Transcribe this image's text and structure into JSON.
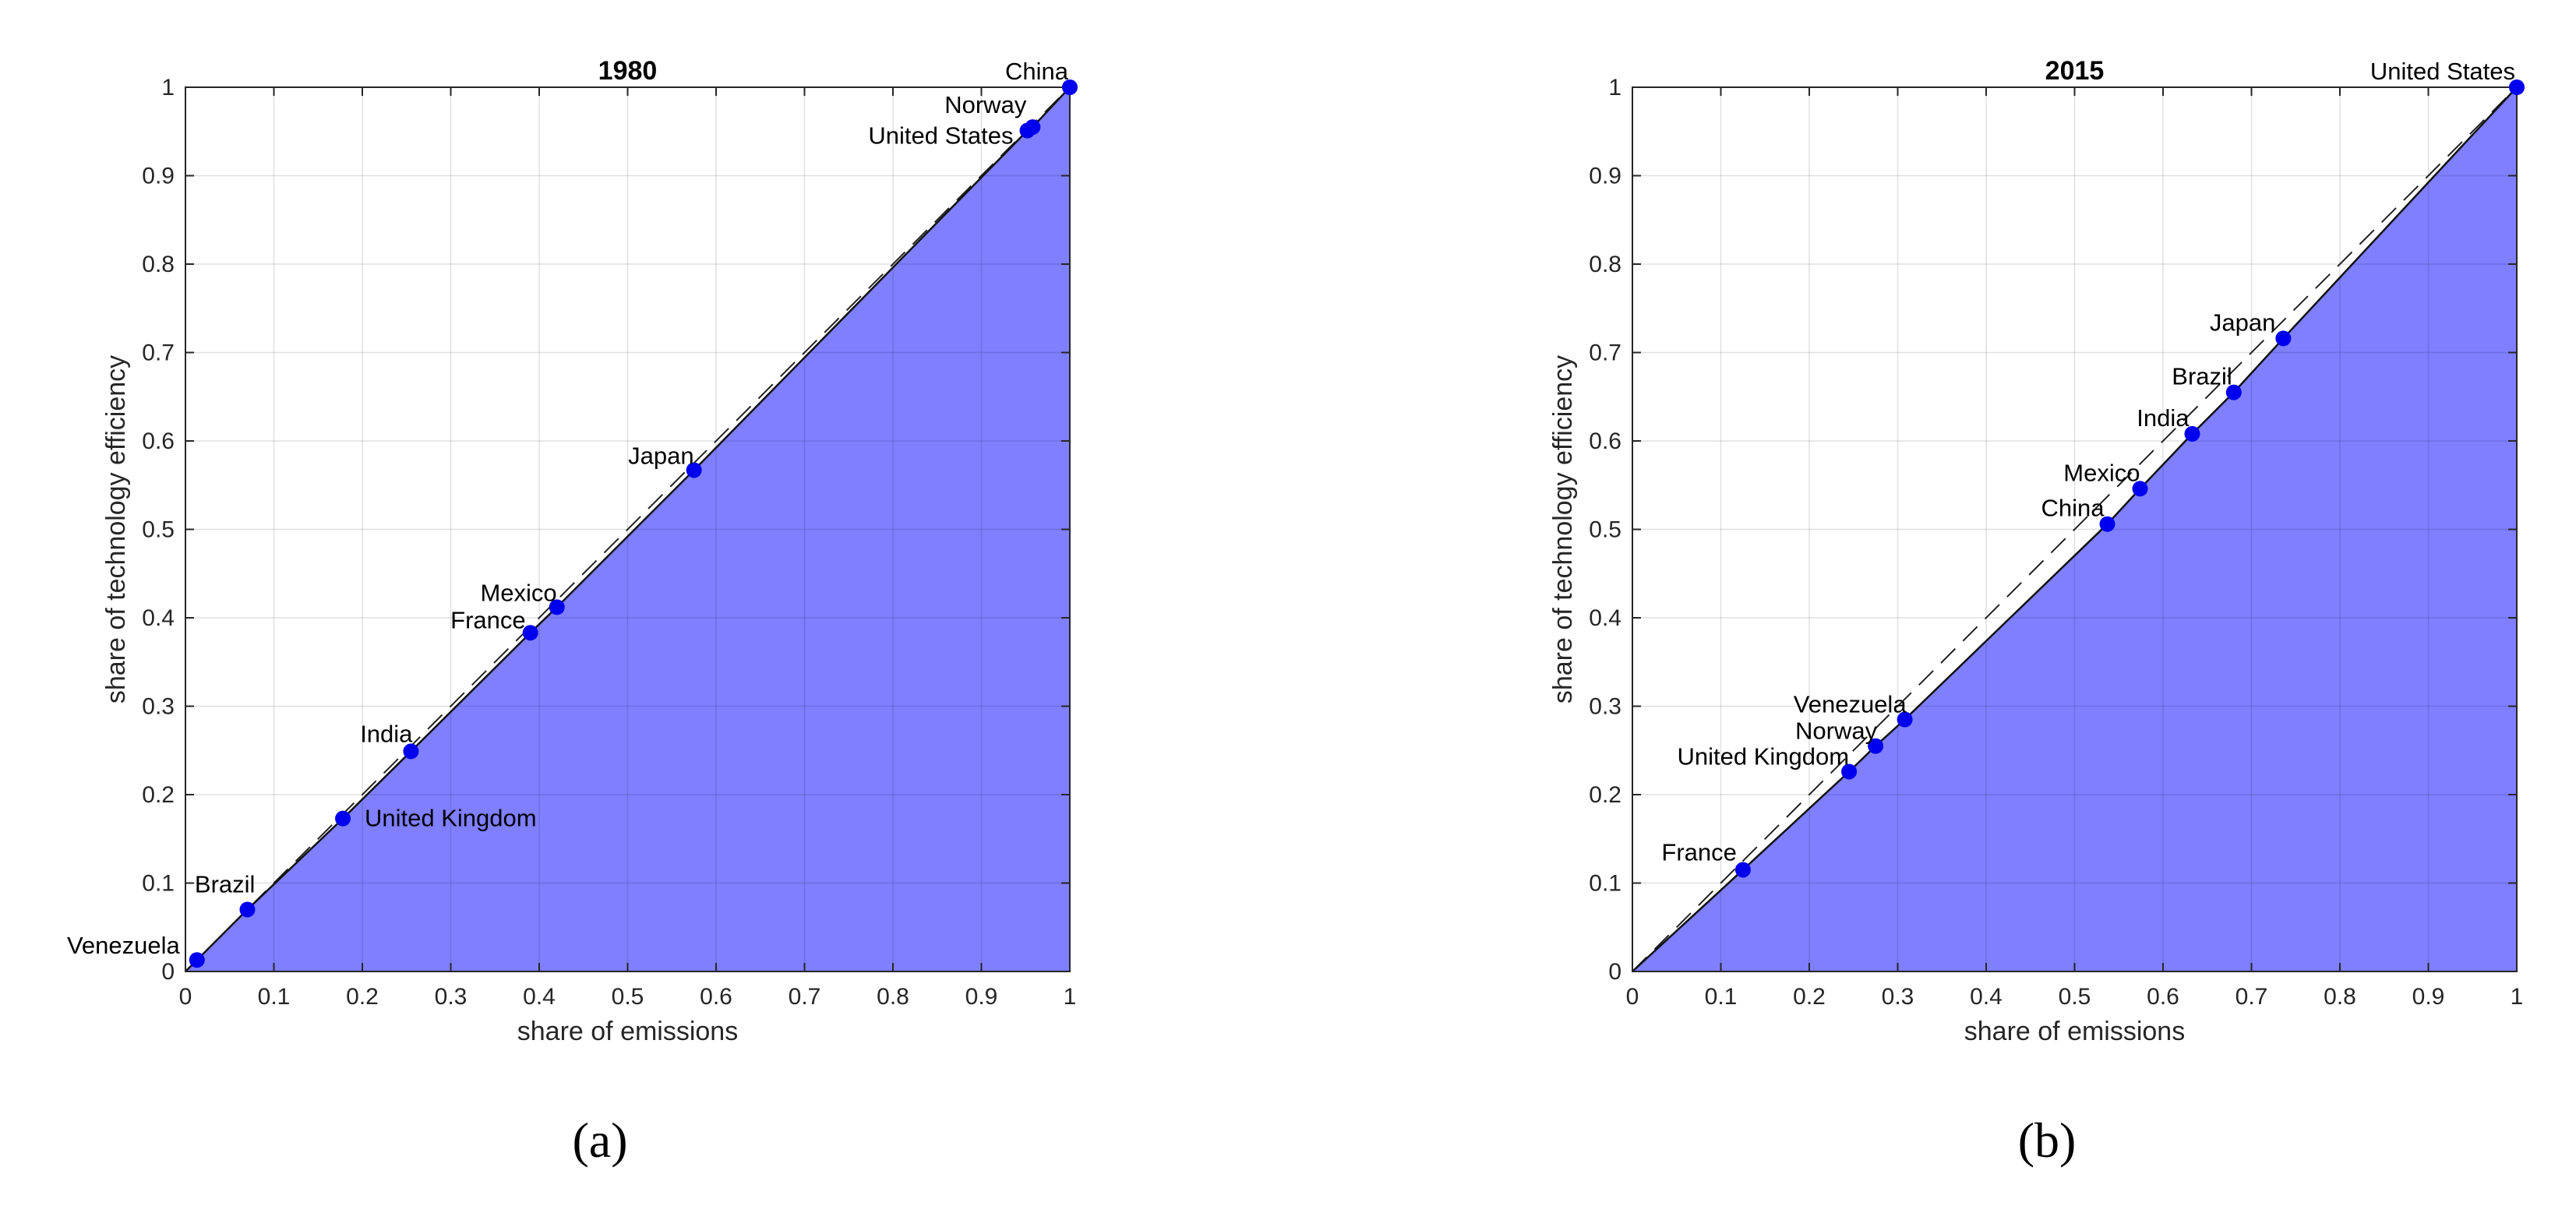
{
  "chart_data": [
    {
      "type": "area",
      "panel_label": "(a)",
      "title": "1980",
      "xlabel": "share of emissions",
      "ylabel": "share of technology efficiency",
      "xlim": [
        0,
        1
      ],
      "ylim": [
        0,
        1
      ],
      "x_ticks": [
        "0",
        "0.1",
        "0.2",
        "0.3",
        "0.4",
        "0.5",
        "0.6",
        "0.7",
        "0.8",
        "0.9",
        "1"
      ],
      "y_ticks": [
        "0",
        "0.1",
        "0.2",
        "0.3",
        "0.4",
        "0.5",
        "0.6",
        "0.7",
        "0.8",
        "0.9",
        "1"
      ],
      "grid": true,
      "fill_color": "#7f7fff",
      "point_color": "#0000ee",
      "reference_line": "dashed diagonal",
      "curve": [
        [
          0,
          0
        ],
        [
          0.013,
          0.013
        ],
        [
          0.07,
          0.07
        ],
        [
          0.178,
          0.173
        ],
        [
          0.255,
          0.249
        ],
        [
          0.39,
          0.383
        ],
        [
          0.42,
          0.412
        ],
        [
          0.575,
          0.567
        ],
        [
          0.952,
          0.951
        ],
        [
          0.958,
          0.955
        ],
        [
          1,
          1
        ]
      ],
      "points": [
        {
          "label": "Venezuela",
          "x": 0.013,
          "y": 0.013
        },
        {
          "label": "Brazil",
          "x": 0.07,
          "y": 0.07
        },
        {
          "label": "United Kingdom",
          "x": 0.178,
          "y": 0.173
        },
        {
          "label": "India",
          "x": 0.255,
          "y": 0.249
        },
        {
          "label": "France",
          "x": 0.39,
          "y": 0.383
        },
        {
          "label": "Mexico",
          "x": 0.42,
          "y": 0.412
        },
        {
          "label": "Japan",
          "x": 0.575,
          "y": 0.567
        },
        {
          "label": "United States",
          "x": 0.952,
          "y": 0.951
        },
        {
          "label": "Norway",
          "x": 0.958,
          "y": 0.955
        },
        {
          "label": "China",
          "x": 1.0,
          "y": 1.0
        }
      ]
    },
    {
      "type": "area",
      "panel_label": "(b)",
      "title": "2015",
      "xlabel": "share of emissions",
      "ylabel": "share of technology efficiency",
      "xlim": [
        0,
        1
      ],
      "ylim": [
        0,
        1
      ],
      "x_ticks": [
        "0",
        "0.1",
        "0.2",
        "0.3",
        "0.4",
        "0.5",
        "0.6",
        "0.7",
        "0.8",
        "0.9",
        "1"
      ],
      "y_ticks": [
        "0",
        "0.1",
        "0.2",
        "0.3",
        "0.4",
        "0.5",
        "0.6",
        "0.7",
        "0.8",
        "0.9",
        "1"
      ],
      "grid": true,
      "fill_color": "#7f7fff",
      "point_color": "#0000ee",
      "reference_line": "dashed diagonal",
      "curve": [
        [
          0,
          0
        ],
        [
          0.125,
          0.115
        ],
        [
          0.245,
          0.226
        ],
        [
          0.275,
          0.255
        ],
        [
          0.308,
          0.285
        ],
        [
          0.537,
          0.506
        ],
        [
          0.574,
          0.546
        ],
        [
          0.633,
          0.608
        ],
        [
          0.68,
          0.655
        ],
        [
          0.736,
          0.716
        ],
        [
          1,
          1
        ]
      ],
      "points": [
        {
          "label": "France",
          "x": 0.125,
          "y": 0.115
        },
        {
          "label": "United Kingdom",
          "x": 0.245,
          "y": 0.226
        },
        {
          "label": "Norway",
          "x": 0.275,
          "y": 0.255
        },
        {
          "label": "Venezuela",
          "x": 0.308,
          "y": 0.285
        },
        {
          "label": "China",
          "x": 0.537,
          "y": 0.506
        },
        {
          "label": "Mexico",
          "x": 0.574,
          "y": 0.546
        },
        {
          "label": "India",
          "x": 0.633,
          "y": 0.608
        },
        {
          "label": "Brazil",
          "x": 0.68,
          "y": 0.655
        },
        {
          "label": "Japan",
          "x": 0.736,
          "y": 0.716
        },
        {
          "label": "United States",
          "x": 1.0,
          "y": 1.0
        }
      ]
    }
  ]
}
